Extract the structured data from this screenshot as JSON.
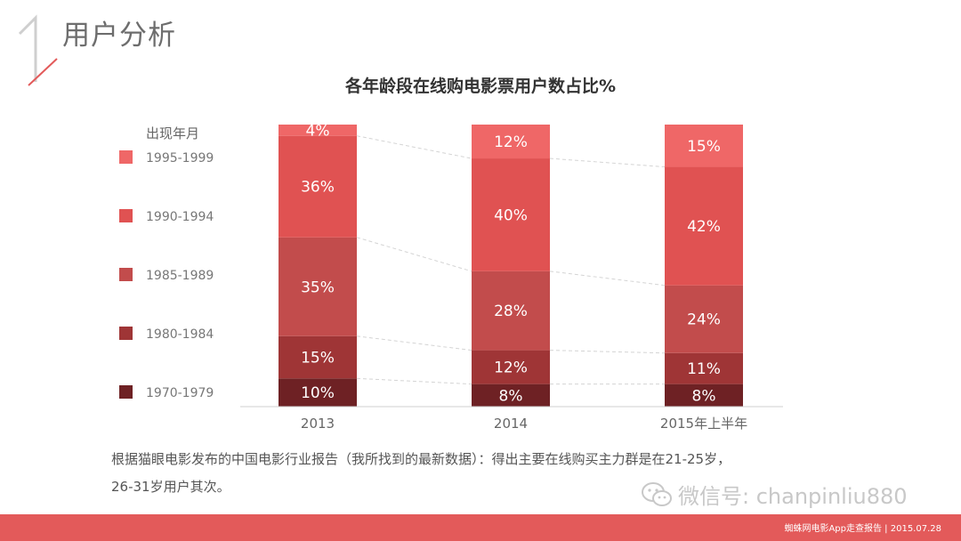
{
  "header": {
    "section_number": "1",
    "section_title": "用户分析"
  },
  "chart_data": {
    "type": "bar",
    "stacked": true,
    "normalized_percent": true,
    "title": "各年龄段在线购电影票用户数占比%",
    "legend_title": "出现年月",
    "legend_position": "left",
    "categories": [
      "2013",
      "2014",
      "2015年上半年"
    ],
    "series": [
      {
        "name": "1970-1979",
        "values": [
          10,
          8,
          8
        ],
        "labels": [
          "10%",
          "8%",
          "8%"
        ],
        "color": "#6e2124"
      },
      {
        "name": "1980-1984",
        "values": [
          15,
          12,
          11
        ],
        "labels": [
          "15%",
          "12%",
          "11%"
        ],
        "color": "#9f3536"
      },
      {
        "name": "1985-1989",
        "values": [
          35,
          28,
          24
        ],
        "labels": [
          "35%",
          "28%",
          "24%"
        ],
        "color": "#c24c4c"
      },
      {
        "name": "1990-1994",
        "values": [
          36,
          40,
          42
        ],
        "labels": [
          "36%",
          "40%",
          "42%"
        ],
        "color": "#e05252"
      },
      {
        "name": "1995-1999",
        "values": [
          4,
          12,
          15
        ],
        "labels": [
          "4%",
          "12%",
          "15%"
        ],
        "color": "#ef6767"
      }
    ],
    "ylim": [
      0,
      100
    ],
    "grid": false,
    "connector_lines": true
  },
  "note": {
    "line1": "根据猫眼电影发布的中国电影行业报告（我所找到的最新数据）：得出主要在线购买主力群是在21-25岁，",
    "line2": "26-31岁用户其次。"
  },
  "watermark": {
    "text": "微信号: chanpinliu880"
  },
  "footer": {
    "text": "蜘蛛网电影App走查报告 | 2015.07.28"
  },
  "colors": {
    "accent": "#e35a5a",
    "deco_gray": "#cfcfcf",
    "deco_red": "#e35a5a"
  },
  "icons": {
    "watermark_logo": "wechat-icon"
  }
}
